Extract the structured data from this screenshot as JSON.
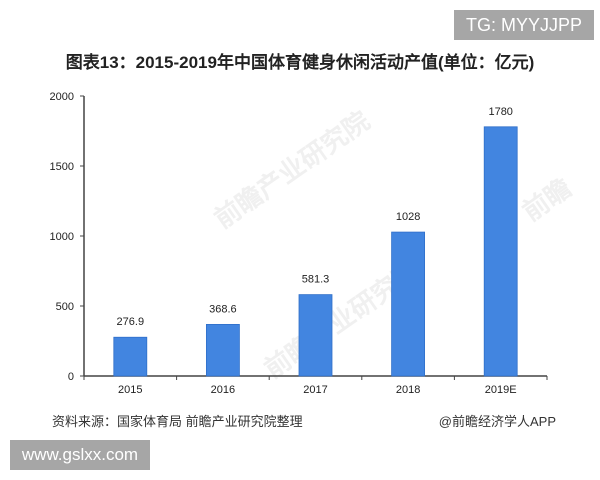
{
  "badges": {
    "top_right": "TG: MYYJJPP",
    "bottom_left": "www.gslxx.com"
  },
  "watermarks": [
    "前瞻产业研究院",
    "前瞻产业研究院",
    "前瞻"
  ],
  "footer": {
    "source": "资料来源：国家体育局 前瞻产业研究院整理",
    "credit": "@前瞻经济学人APP"
  },
  "colors": {
    "bar": "#4285e0",
    "bar_border": "#2f6fc9",
    "axis": "#444444"
  },
  "chart_data": {
    "type": "bar",
    "title": "图表13：2015-2019年中国体育健身休闲活动产值(单位：亿元)",
    "xlabel": "",
    "ylabel": "",
    "categories": [
      "2015",
      "2016",
      "2017",
      "2018",
      "2019E"
    ],
    "values": [
      276.9,
      368.6,
      581.3,
      1028,
      1780
    ],
    "value_labels": [
      "276.9",
      "368.6",
      "581.3",
      "1028",
      "1780"
    ],
    "ylim": [
      0,
      2000
    ],
    "yticks": [
      0,
      500,
      1000,
      1500,
      2000
    ],
    "grid": false,
    "legend": null
  }
}
